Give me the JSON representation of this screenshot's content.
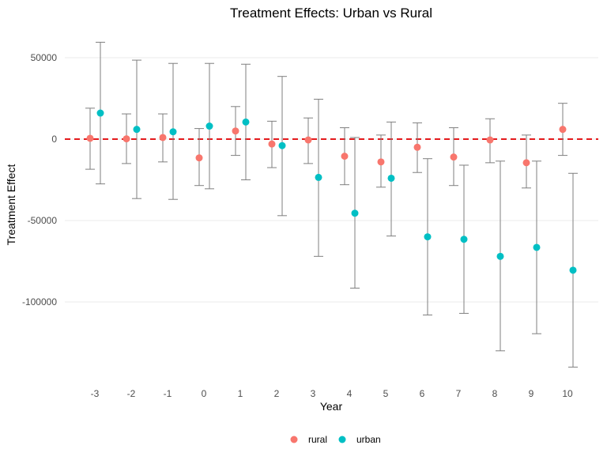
{
  "chart_data": {
    "type": "scatter",
    "title": "Treatment Effects: Urban vs Rural",
    "xlabel": "Year",
    "ylabel": "Treatment Effect",
    "x": [
      -3,
      -2,
      -1,
      0,
      1,
      2,
      3,
      4,
      5,
      6,
      7,
      8,
      9,
      10
    ],
    "xlim": [
      -4,
      11
    ],
    "ylim": [
      -150000,
      60000
    ],
    "yticks": [
      50000,
      0,
      -50000,
      -100000
    ],
    "ytick_labels": [
      "50000",
      "0",
      "-50000",
      "-100000"
    ],
    "grid": "horizontal",
    "reference_line": {
      "y": 0,
      "color": "#e41a1c",
      "style": "dashed"
    },
    "legend_position": "bottom",
    "series": [
      {
        "name": "rural",
        "color": "#F8766D",
        "values": [
          500,
          200,
          1000,
          -11500,
          5000,
          -3000,
          -500,
          -10500,
          -14000,
          -5000,
          -11000,
          -500,
          -14500,
          6000
        ],
        "lower": [
          -18500,
          -15000,
          -14000,
          -28500,
          -10000,
          -17500,
          -15000,
          -28000,
          -29500,
          -20500,
          -28500,
          -14500,
          -30000,
          -10000
        ],
        "upper": [
          19000,
          15500,
          15500,
          6500,
          20000,
          11000,
          13000,
          7000,
          2500,
          10000,
          7000,
          12500,
          2500,
          22000
        ]
      },
      {
        "name": "urban",
        "color": "#00BFC4",
        "values": [
          16000,
          6000,
          4500,
          8000,
          10500,
          -4000,
          -23500,
          -45500,
          -24000,
          -60000,
          -61500,
          -72000,
          -66500,
          -80500
        ],
        "lower": [
          -27500,
          -36500,
          -37000,
          -30500,
          -25000,
          -47000,
          -72000,
          -91500,
          -59500,
          -108000,
          -107000,
          -130000,
          -119500,
          -140000
        ],
        "upper": [
          59500,
          48500,
          46500,
          46500,
          46000,
          38500,
          24500,
          1000,
          10500,
          -12000,
          -16000,
          -13500,
          -13500,
          -21000
        ]
      }
    ]
  }
}
